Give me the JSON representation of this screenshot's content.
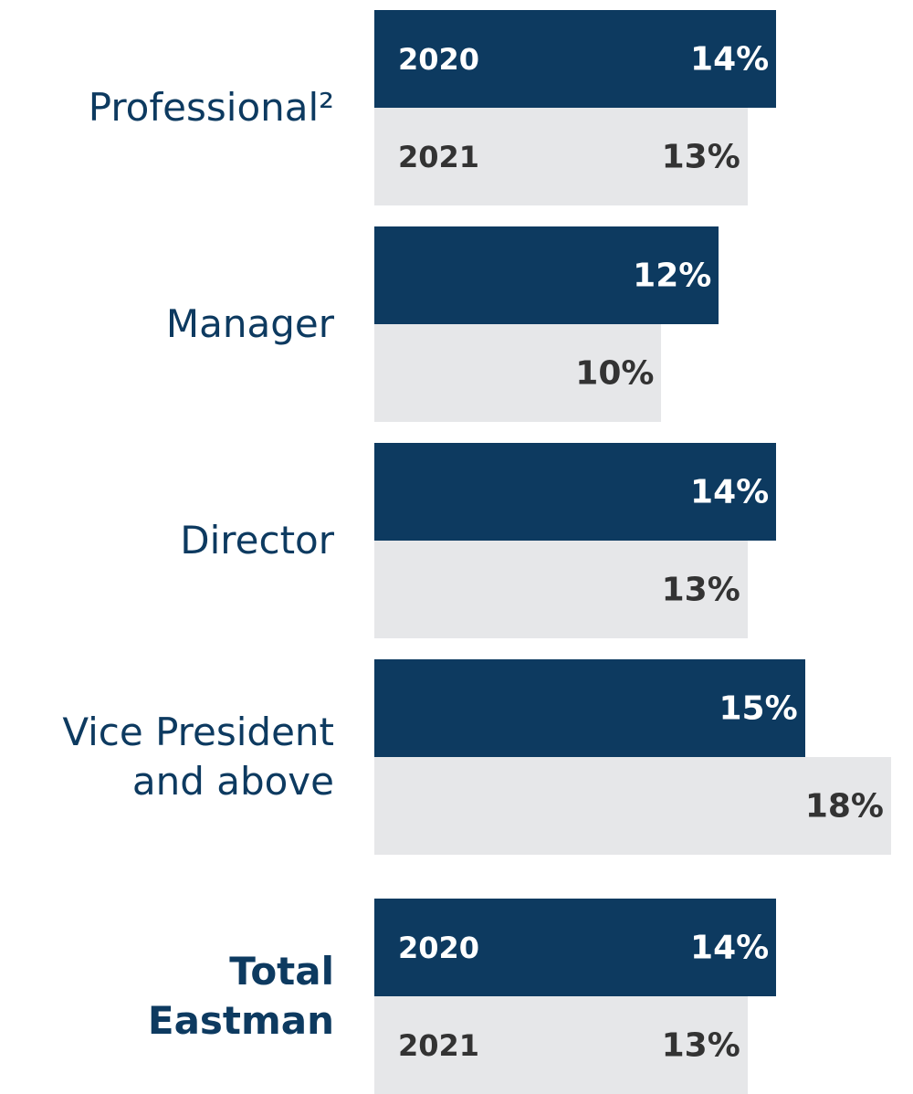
{
  "chart_data": {
    "type": "bar",
    "orientation": "horizontal",
    "categories": [
      "Professional²",
      "Manager",
      "Director",
      "Vice President\nand above",
      "Total\nEastman"
    ],
    "series": [
      {
        "name": "2020",
        "color": "#0d3a60",
        "values": [
          14,
          12,
          14,
          15,
          14
        ],
        "value_labels": [
          "14%",
          "12%",
          "14%",
          "15%",
          "14%"
        ]
      },
      {
        "name": "2021",
        "color": "#e6e7e9",
        "values": [
          13,
          10,
          13,
          18,
          13
        ],
        "value_labels": [
          "13%",
          "10%",
          "13%",
          "18%",
          "13%"
        ]
      }
    ]
  }
}
